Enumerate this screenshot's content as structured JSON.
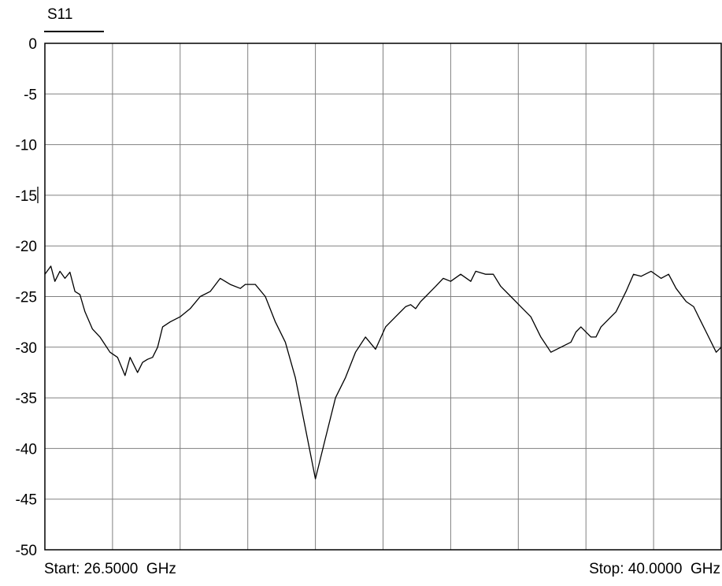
{
  "legend": {
    "trace_name": "S11"
  },
  "footer": {
    "start": "Start: 26.5000  GHz",
    "stop": "Stop: 40.0000  GHz"
  },
  "chart_data": {
    "type": "line",
    "title": "",
    "xlabel": "",
    "ylabel": "",
    "xlim": [
      26.5,
      40.0
    ],
    "ylim": [
      -50,
      0
    ],
    "yticks": [
      0,
      -5,
      -10,
      -15,
      -20,
      -25,
      -30,
      -35,
      -40,
      -45,
      -50
    ],
    "ytick_labels": [
      "0",
      "-5",
      "-10",
      "-15",
      "-20",
      "-25",
      "-30",
      "-35",
      "-40",
      "-45",
      "-50"
    ],
    "x_divisions": 10,
    "grid": true,
    "line_color": "#000000",
    "grid_color": "#808080",
    "series": [
      {
        "name": "S11",
        "x": [
          26.5,
          26.62,
          26.7,
          26.8,
          26.9,
          27.0,
          27.1,
          27.2,
          27.3,
          27.45,
          27.6,
          27.8,
          27.95,
          28.1,
          28.2,
          28.35,
          28.45,
          28.55,
          28.65,
          28.75,
          28.85,
          29.0,
          29.2,
          29.4,
          29.6,
          29.8,
          30.0,
          30.2,
          30.4,
          30.5,
          30.7,
          30.9,
          31.1,
          31.3,
          31.5,
          31.7,
          31.9,
          32.1,
          32.3,
          32.5,
          32.7,
          32.9,
          33.1,
          33.3,
          33.5,
          33.7,
          33.8,
          33.9,
          34.0,
          34.1,
          34.2,
          34.3,
          34.45,
          34.6,
          34.8,
          35.0,
          35.1,
          35.3,
          35.45,
          35.6,
          35.8,
          36.0,
          36.2,
          36.4,
          36.6,
          36.8,
          37.0,
          37.1,
          37.2,
          37.4,
          37.5,
          37.6,
          37.8,
          37.9,
          38.1,
          38.25,
          38.4,
          38.6,
          38.8,
          38.95,
          39.1,
          39.3,
          39.45,
          39.6,
          39.7,
          39.9,
          40.0
        ],
        "y": [
          -22.8,
          -22.0,
          -23.5,
          -22.5,
          -23.2,
          -22.6,
          -24.5,
          -24.8,
          -26.5,
          -28.2,
          -29.0,
          -30.5,
          -31.0,
          -32.8,
          -31.0,
          -32.5,
          -31.5,
          -31.2,
          -31.0,
          -30.0,
          -28.0,
          -27.5,
          -27.0,
          -26.2,
          -25.0,
          -24.5,
          -23.2,
          -23.8,
          -24.2,
          -23.8,
          -23.8,
          -25.0,
          -27.5,
          -29.5,
          -33.0,
          -38.0,
          -43.0,
          -39.0,
          -35.0,
          -33.0,
          -30.5,
          -29.0,
          -30.2,
          -28.0,
          -27.0,
          -26.0,
          -25.8,
          -26.2,
          -25.5,
          -25.0,
          -24.5,
          -24.0,
          -23.2,
          -23.5,
          -22.8,
          -23.5,
          -22.5,
          -22.8,
          -22.8,
          -24.0,
          -25.0,
          -26.0,
          -27.0,
          -29.0,
          -30.5,
          -30.0,
          -29.5,
          -28.5,
          -28.0,
          -29.0,
          -29.0,
          -28.0,
          -27.0,
          -26.5,
          -24.5,
          -22.8,
          -23.0,
          -22.5,
          -23.2,
          -22.8,
          -24.2,
          -25.5,
          -26.0,
          -27.5,
          -28.5,
          -30.5,
          -30.0
        ]
      }
    ]
  }
}
